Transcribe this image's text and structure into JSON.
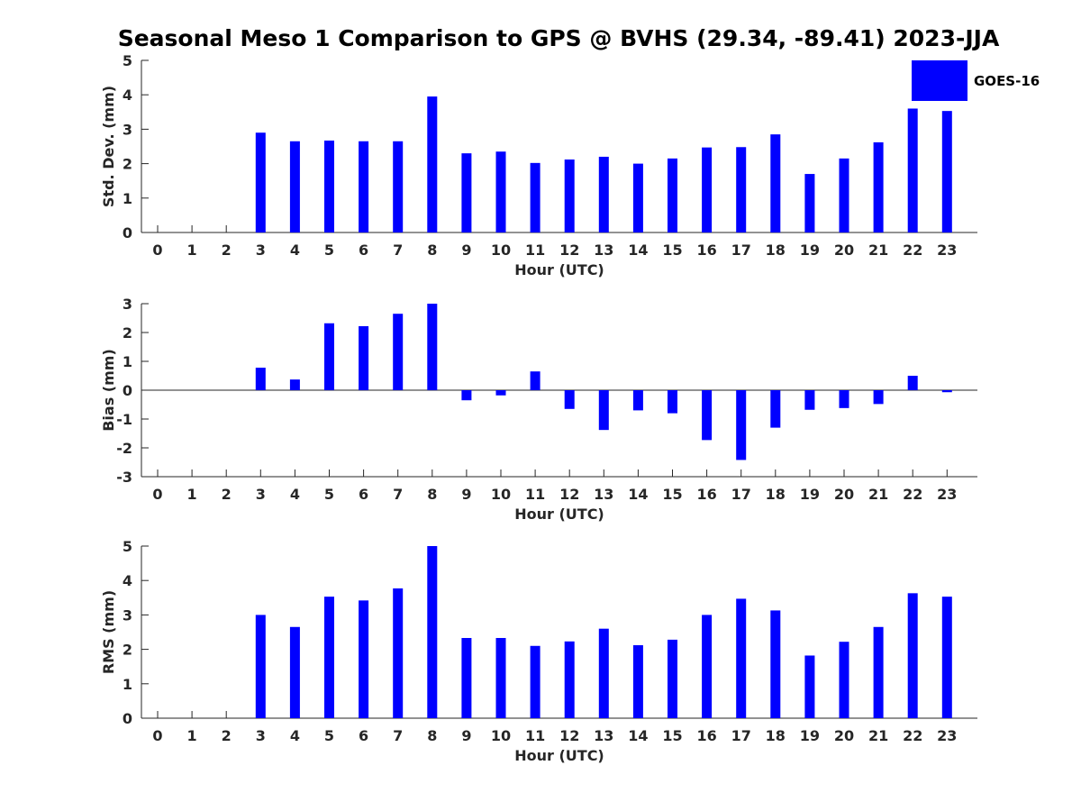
{
  "title": "Seasonal Meso 1 Comparison to GPS @ BVHS (29.34, -89.41) 2023-JJA",
  "colors": {
    "bar": "#0000ff",
    "axis": "#262626",
    "text": "#262626"
  },
  "legend": {
    "label": "GOES-16",
    "placement": "top-right"
  },
  "chart_data": [
    {
      "type": "bar",
      "title": "",
      "xlabel": "Hour (UTC)",
      "ylabel": "Std. Dev. (mm)",
      "ylim": [
        0,
        5
      ],
      "yticks": [
        0,
        1,
        2,
        3,
        4,
        5
      ],
      "categories": [
        "0",
        "1",
        "2",
        "3",
        "4",
        "5",
        "6",
        "7",
        "8",
        "9",
        "10",
        "11",
        "12",
        "13",
        "14",
        "15",
        "16",
        "17",
        "18",
        "19",
        "20",
        "21",
        "22",
        "23"
      ],
      "series": [
        {
          "name": "GOES-16",
          "values": [
            null,
            null,
            null,
            2.9,
            2.65,
            2.67,
            2.65,
            2.65,
            3.95,
            2.3,
            2.35,
            2.02,
            2.12,
            2.2,
            2.0,
            2.15,
            2.47,
            2.48,
            2.85,
            1.7,
            2.15,
            2.62,
            3.6,
            3.53
          ]
        }
      ],
      "grid": false
    },
    {
      "type": "bar",
      "title": "",
      "xlabel": "Hour (UTC)",
      "ylabel": "Bias (mm)",
      "ylim": [
        -3,
        3
      ],
      "yticks": [
        -3,
        -2,
        -1,
        0,
        1,
        2,
        3
      ],
      "categories": [
        "0",
        "1",
        "2",
        "3",
        "4",
        "5",
        "6",
        "7",
        "8",
        "9",
        "10",
        "11",
        "12",
        "13",
        "14",
        "15",
        "16",
        "17",
        "18",
        "19",
        "20",
        "21",
        "22",
        "23"
      ],
      "series": [
        {
          "name": "GOES-16",
          "values": [
            null,
            null,
            null,
            0.78,
            0.37,
            2.32,
            2.22,
            2.65,
            3.0,
            -0.35,
            -0.18,
            0.65,
            -0.65,
            -1.38,
            -0.7,
            -0.8,
            -1.73,
            -2.42,
            -1.3,
            -0.68,
            -0.62,
            -0.48,
            0.5,
            -0.07
          ]
        }
      ],
      "grid": false
    },
    {
      "type": "bar",
      "title": "",
      "xlabel": "Hour (UTC)",
      "ylabel": "RMS (mm)",
      "ylim": [
        0,
        5
      ],
      "yticks": [
        0,
        1,
        2,
        3,
        4,
        5
      ],
      "categories": [
        "0",
        "1",
        "2",
        "3",
        "4",
        "5",
        "6",
        "7",
        "8",
        "9",
        "10",
        "11",
        "12",
        "13",
        "14",
        "15",
        "16",
        "17",
        "18",
        "19",
        "20",
        "21",
        "22",
        "23"
      ],
      "series": [
        {
          "name": "GOES-16",
          "values": [
            null,
            null,
            null,
            3.0,
            2.65,
            3.53,
            3.42,
            3.77,
            5.0,
            2.33,
            2.33,
            2.1,
            2.23,
            2.6,
            2.12,
            2.28,
            3.0,
            3.47,
            3.13,
            1.82,
            2.22,
            2.65,
            3.63,
            3.53
          ]
        }
      ],
      "grid": false
    }
  ]
}
